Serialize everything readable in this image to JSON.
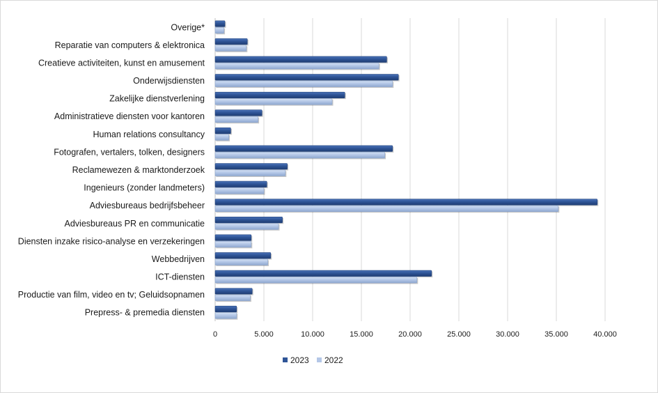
{
  "chart_data": {
    "type": "bar",
    "orientation": "horizontal",
    "categories": [
      "Overige*",
      "Reparatie van computers & elektronica",
      "Creatieve activiteiten, kunst en amusement",
      "Onderwijsdiensten",
      "Zakelijke dienstverlening",
      "Administratieve diensten voor kantoren",
      "Human relations consultancy",
      "Fotografen, vertalers, tolken, designers",
      "Reclamewezen & marktonderzoek",
      "Ingenieurs (zonder landmeters)",
      "Adviesbureaus bedrijfsbeheer",
      "Adviesbureaus PR en communicatie",
      "Diensten inzake risico-analyse en verzekeringen",
      "Webbedrijven",
      "ICT-diensten",
      "Productie van film, video en tv; Geluidsopnamen",
      "Prepress- & premedia diensten"
    ],
    "series": [
      {
        "name": "2023",
        "color": "#2f5597",
        "values": [
          1000,
          3300,
          17600,
          18800,
          13300,
          4800,
          1600,
          18200,
          7400,
          5300,
          39200,
          6900,
          3700,
          5700,
          22200,
          3800,
          2200
        ]
      },
      {
        "name": "2022",
        "color": "#b4c7e7",
        "values": [
          900,
          3200,
          16800,
          18200,
          12000,
          4400,
          1400,
          17400,
          7200,
          5000,
          35200,
          6500,
          3700,
          5400,
          20700,
          3600,
          2200
        ]
      }
    ],
    "xlim": [
      0,
      40000
    ],
    "xticks": [
      0,
      5000,
      10000,
      15000,
      20000,
      25000,
      30000,
      35000,
      40000
    ],
    "xtick_labels": [
      "0",
      "5.000",
      "10.000",
      "15.000",
      "20.000",
      "25.000",
      "30.000",
      "35.000",
      "40.000"
    ],
    "title": "",
    "xlabel": "",
    "ylabel": "",
    "grid": "vertical",
    "legend_position": "bottom"
  }
}
